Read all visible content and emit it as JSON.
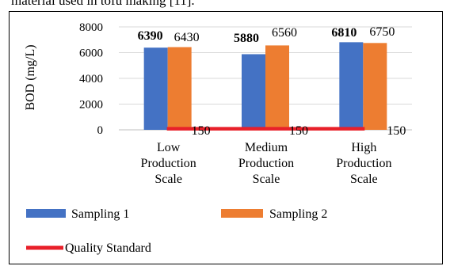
{
  "caption": "material used in tofu making [11].",
  "chart_data": {
    "type": "bar",
    "categories": [
      [
        "Low",
        "Production",
        "Scale"
      ],
      [
        "Medium",
        "Production",
        "Scale"
      ],
      [
        "High",
        "Production",
        "Scale"
      ]
    ],
    "series": [
      {
        "name": "Sampling 1",
        "values": [
          6390,
          5880,
          6810
        ],
        "color": "#4472C4",
        "label_bold": true
      },
      {
        "name": "Sampling 2",
        "values": [
          6430,
          6560,
          6750
        ],
        "color": "#ED7D31",
        "label_bold": false
      }
    ],
    "line_series": {
      "name": "Quality Standard",
      "values": [
        150,
        150,
        150
      ],
      "color": "#E8202A"
    },
    "ylabel": "BOD (mg/L)",
    "ylim": [
      0,
      8000
    ],
    "yticks": [
      "0",
      "2000",
      "4000",
      "6000",
      "8000"
    ],
    "grid": true,
    "legend_position": "bottom"
  }
}
